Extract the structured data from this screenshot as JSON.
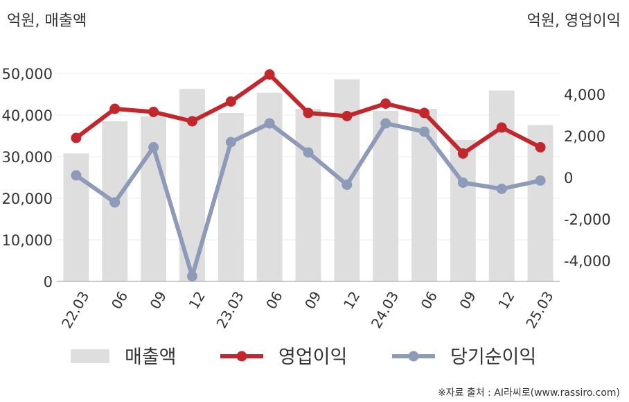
{
  "chart_data": {
    "type": "bar+line",
    "categories": [
      "22.03",
      "06",
      "09",
      "12",
      "23.03",
      "06",
      "09",
      "12",
      "24.03",
      "06",
      "09",
      "12",
      "25.03"
    ],
    "left_axis": {
      "unit_label": "억원, 매출액",
      "ylim": [
        0,
        50000
      ],
      "ticks": [
        "0",
        "10,000",
        "20,000",
        "30,000",
        "40,000",
        "50,000"
      ]
    },
    "right_axis": {
      "unit_label": "억원, 영업이익",
      "ylim": [
        -5000,
        5000
      ],
      "ticks": [
        "-4,000",
        "-2,000",
        "0",
        "2,000",
        "4,000"
      ]
    },
    "series": [
      {
        "name": "매출액",
        "kind": "bar",
        "axis": "left",
        "color": "#dedede",
        "values": [
          30800,
          38500,
          39700,
          46300,
          40500,
          45400,
          41500,
          48600,
          41000,
          41500,
          34000,
          45900,
          37600
        ]
      },
      {
        "name": "영업이익",
        "kind": "line",
        "axis": "right",
        "color": "#c1272d",
        "values": [
          1900,
          3300,
          3150,
          2700,
          3650,
          4950,
          3100,
          2950,
          3550,
          3100,
          1150,
          2400,
          1450
        ]
      },
      {
        "name": "당기순이익",
        "kind": "line",
        "axis": "right",
        "color": "#8d9bb8",
        "values": [
          100,
          -1200,
          1450,
          -4750,
          1700,
          2600,
          1200,
          -350,
          2600,
          2200,
          -250,
          -550,
          -150
        ]
      }
    ],
    "grid": true,
    "legend_position": "bottom"
  },
  "source_note": "※자료 출처 : AI라씨로(www.rassiro.com)"
}
